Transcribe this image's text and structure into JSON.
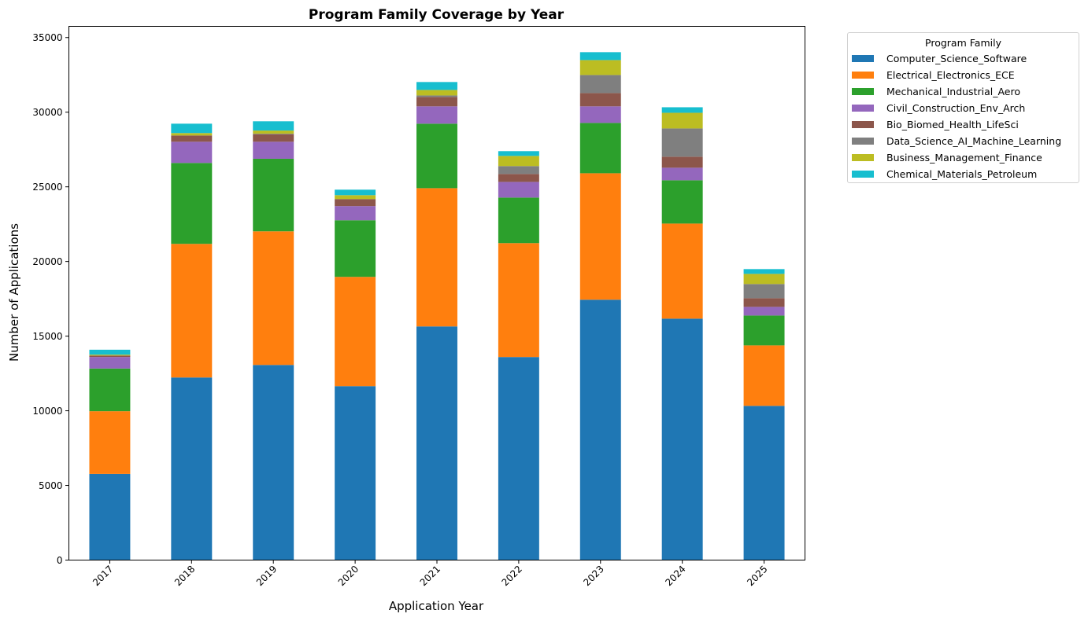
{
  "chart_data": {
    "type": "bar",
    "stacked": true,
    "title": "Program Family Coverage by Year",
    "xlabel": "Application Year",
    "ylabel": "Number of Applications",
    "ylim": [
      0,
      35750
    ],
    "yticks": [
      0,
      5000,
      10000,
      15000,
      20000,
      25000,
      30000,
      35000
    ],
    "grid": false,
    "legend": {
      "title": "Program Family",
      "placement": "outside-top-right"
    },
    "categories": [
      "2017",
      "2018",
      "2019",
      "2020",
      "2021",
      "2022",
      "2023",
      "2024",
      "2025"
    ],
    "series": [
      {
        "name": "Computer_Science_Software",
        "color": "#1f77b4",
        "values": [
          5770,
          12230,
          13070,
          11650,
          15650,
          13600,
          17440,
          16170,
          10330
        ]
      },
      {
        "name": "Electrical_Electronics_ECE",
        "color": "#ff7f0e",
        "values": [
          4200,
          8950,
          8950,
          7320,
          9260,
          7630,
          8470,
          6370,
          4050
        ]
      },
      {
        "name": "Mechanical_Industrial_Aero",
        "color": "#2ca02c",
        "values": [
          2860,
          5420,
          4860,
          3790,
          4320,
          3050,
          3370,
          2900,
          2000
        ]
      },
      {
        "name": "Civil_Construction_Env_Arch",
        "color": "#9467bd",
        "values": [
          770,
          1420,
          1140,
          950,
          1160,
          1050,
          1110,
          840,
          580
        ]
      },
      {
        "name": "Bio_Biomed_Health_LifeSci",
        "color": "#8c564b",
        "values": [
          100,
          420,
          500,
          470,
          630,
          530,
          890,
          740,
          580
        ]
      },
      {
        "name": "Data_Science_AI_Machine_Learning",
        "color": "#7f7f7f",
        "values": [
          0,
          0,
          40,
          0,
          100,
          530,
          1210,
          1890,
          950
        ]
      },
      {
        "name": "Business_Management_Finance",
        "color": "#bcbd22",
        "values": [
          60,
          160,
          210,
          260,
          370,
          680,
          1000,
          1050,
          680
        ]
      },
      {
        "name": "Chemical_Materials_Petroleum",
        "color": "#17becf",
        "values": [
          330,
          630,
          620,
          370,
          530,
          320,
          530,
          370,
          320
        ]
      }
    ]
  }
}
